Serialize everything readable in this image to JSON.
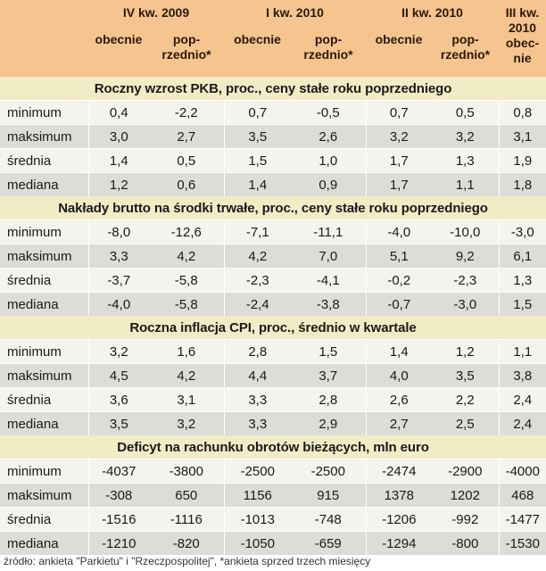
{
  "header": {
    "periods": [
      "IV kw. 2009",
      "I kw. 2010",
      "II kw. 2010",
      "III kw. 2010"
    ],
    "last_period_sub": "obec-nie",
    "now_label": "obecnie",
    "prev_label": "pop-rzednio*"
  },
  "sections": [
    {
      "title": "Roczny wzrost PKB, proc., ceny stałe roku poprzedniego",
      "rows": [
        {
          "label": "minimum",
          "values": [
            "0,4",
            "-2,2",
            "0,7",
            "-0,5",
            "0,7",
            "0,5",
            "0,8"
          ]
        },
        {
          "label": "maksimum",
          "values": [
            "3,0",
            "2,7",
            "3,5",
            "2,6",
            "3,2",
            "3,2",
            "3,1"
          ]
        },
        {
          "label": "średnia",
          "values": [
            "1,4",
            "0,5",
            "1,5",
            "1,0",
            "1,7",
            "1,3",
            "1,9"
          ]
        },
        {
          "label": "mediana",
          "values": [
            "1,2",
            "0,6",
            "1,4",
            "0,9",
            "1,7",
            "1,1",
            "1,8"
          ]
        }
      ]
    },
    {
      "title": "Nakłady brutto na środki trwałe, proc., ceny stałe roku poprzedniego",
      "rows": [
        {
          "label": "minimum",
          "values": [
            "-8,0",
            "-12,6",
            "-7,1",
            "-11,1",
            "-4,0",
            "-10,0",
            "-3,0"
          ]
        },
        {
          "label": "maksimum",
          "values": [
            "3,3",
            "4,2",
            "4,2",
            "7,0",
            "5,1",
            "9,2",
            "6,1"
          ]
        },
        {
          "label": "średnia",
          "values": [
            "-3,7",
            "-5,8",
            "-2,3",
            "-4,1",
            "-0,2",
            "-2,3",
            "1,3"
          ]
        },
        {
          "label": "mediana",
          "values": [
            "-4,0",
            "-5,8",
            "-2,4",
            "-3,8",
            "-0,7",
            "-3,0",
            "1,5"
          ]
        }
      ]
    },
    {
      "title": "Roczna inflacja CPI, proc., średnio w kwartale",
      "rows": [
        {
          "label": "minimum",
          "values": [
            "3,2",
            "1,6",
            "2,8",
            "1,5",
            "1,4",
            "1,2",
            "1,1"
          ]
        },
        {
          "label": "maksimum",
          "values": [
            "4,5",
            "4,2",
            "4,4",
            "3,7",
            "4,0",
            "3,5",
            "3,8"
          ]
        },
        {
          "label": "średnia",
          "values": [
            "3,6",
            "3,1",
            "3,3",
            "2,8",
            "2,6",
            "2,2",
            "2,4"
          ]
        },
        {
          "label": "mediana",
          "values": [
            "3,5",
            "3,2",
            "3,3",
            "2,9",
            "2,7",
            "2,5",
            "2,4"
          ]
        }
      ]
    },
    {
      "title": "Deficyt na rachunku obrotów bieżących, mln euro",
      "rows": [
        {
          "label": "minimum",
          "values": [
            "-4037",
            "-3800",
            "-2500",
            "-2500",
            "-2474",
            "-2900",
            "-4000"
          ]
        },
        {
          "label": "maksimum",
          "values": [
            "-308",
            "650",
            "1156",
            "915",
            "1378",
            "1202",
            "468"
          ]
        },
        {
          "label": "średnia",
          "values": [
            "-1516",
            "-1116",
            "-1013",
            "-748",
            "-1206",
            "-992",
            "-1477"
          ]
        },
        {
          "label": "mediana",
          "values": [
            "-1210",
            "-820",
            "-1050",
            "-659",
            "-1294",
            "-800",
            "-1530"
          ]
        }
      ]
    }
  ],
  "footer": "źródło: ankieta \"Parkietu\" i \"Rzeczpospolitej\", *ankieta sprzed trzech miesięcy"
}
